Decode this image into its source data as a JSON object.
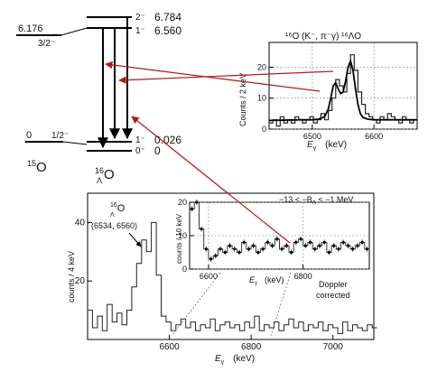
{
  "level_scheme": {
    "o15": {
      "levels": [
        {
          "energy": "6.176",
          "spin": "3/2⁻"
        },
        {
          "energy": "0",
          "spin": "1/2⁻"
        }
      ],
      "label_main": "15",
      "label_sym": "O"
    },
    "hyp16": {
      "levels": [
        {
          "spin": "2⁻",
          "energy": "6.784"
        },
        {
          "spin": "1⁻",
          "energy": "6.560"
        },
        {
          "spin": "1⁻",
          "energy": "0.026"
        },
        {
          "spin": "0⁻",
          "energy": "0"
        }
      ],
      "label_mass": "16",
      "label_lambda": "Λ",
      "label_sym": "O"
    }
  },
  "text": {
    "top_title": "¹⁶O (K⁻, π⁻γ) ¹⁶ΛO",
    "top_ylabel": "Counts / 2 keV",
    "top_xlabel": "E",
    "top_xsub": "γ",
    "top_xunit": "(keV)",
    "bot_ylabel": "counts / 4 keV",
    "bot_xlabel": "E",
    "bot_xsub": "γ",
    "bot_xunit": "(keV)",
    "bot_peak_mass": "16",
    "bot_peak_lambda": "Λ",
    "bot_peak_sym": "O",
    "bot_peak_energies": "(6534, 6560)",
    "inset_range": "−13 < −B",
    "inset_range_sub": "Λ",
    "inset_range_end": " < −1 MeV",
    "inset_ylabel": "counts / 10 keV",
    "inset_xlabel": "E",
    "inset_xsub": "γ",
    "inset_xunit": "(keV)",
    "doppler_line1": "Doppler",
    "doppler_line2": "corrected"
  },
  "chart_data": [
    {
      "type": "line",
      "name": "top-spectrum",
      "xlim": [
        6430,
        6670
      ],
      "ylim": [
        0,
        28
      ],
      "xticks": [
        6500,
        6600
      ],
      "yticks": [
        0,
        10,
        20
      ],
      "x": [
        6430,
        6436,
        6442,
        6448,
        6454,
        6460,
        6466,
        6472,
        6478,
        6484,
        6490,
        6496,
        6502,
        6508,
        6514,
        6520,
        6526,
        6532,
        6538,
        6544,
        6550,
        6556,
        6562,
        6568,
        6574,
        6580,
        6586,
        6592,
        6598,
        6604,
        6610,
        6616,
        6622,
        6628,
        6634,
        6640,
        6646,
        6652,
        6658,
        6664
      ],
      "y": [
        2,
        3,
        1,
        4,
        2,
        3,
        2,
        4,
        3,
        2,
        3,
        4,
        2,
        3,
        5,
        3,
        6,
        10,
        16,
        14,
        12,
        18,
        24,
        19,
        12,
        8,
        5,
        4,
        3,
        2,
        4,
        3,
        5,
        4,
        3,
        2,
        4,
        3,
        2,
        3
      ],
      "fit_x": [
        6430,
        6480,
        6500,
        6510,
        6520,
        6526,
        6530,
        6534,
        6538,
        6542,
        6546,
        6550,
        6554,
        6558,
        6562,
        6566,
        6570,
        6574,
        6578,
        6582,
        6590,
        6600,
        6620,
        6670
      ],
      "fit_y": [
        2.8,
        3,
        3,
        3.2,
        4,
        6.5,
        10,
        14,
        15,
        13,
        11.5,
        12,
        15.5,
        20,
        22,
        19,
        13,
        8,
        5,
        3.8,
        3.2,
        3,
        3,
        3
      ]
    },
    {
      "type": "line",
      "name": "bottom-spectrum",
      "xlim": [
        6400,
        7100
      ],
      "ylim": [
        0,
        50
      ],
      "xticks": [
        6600,
        6800,
        7000
      ],
      "yticks": [
        20,
        40
      ],
      "x": [
        6400,
        6412,
        6424,
        6436,
        6448,
        6460,
        6472,
        6484,
        6496,
        6508,
        6520,
        6532,
        6544,
        6556,
        6568,
        6580,
        6592,
        6604,
        6616,
        6628,
        6640,
        6652,
        6664,
        6676,
        6688,
        6700,
        6712,
        6724,
        6736,
        6748,
        6760,
        6772,
        6784,
        6796,
        6808,
        6820,
        6832,
        6844,
        6856,
        6868,
        6880,
        6892,
        6904,
        6916,
        6928,
        6940,
        6952,
        6964,
        6976,
        6988,
        7000,
        7012,
        7024,
        7036,
        7048,
        7060,
        7072,
        7084,
        7096
      ],
      "y": [
        10,
        4,
        8,
        3,
        12,
        6,
        9,
        5,
        10,
        18,
        26,
        34,
        30,
        40,
        22,
        8,
        6,
        3,
        5,
        7,
        4,
        6,
        3,
        5,
        4,
        7,
        3,
        5,
        6,
        4,
        5,
        3,
        6,
        4,
        8,
        3,
        5,
        4,
        6,
        3,
        5,
        7,
        4,
        6,
        3,
        5,
        4,
        6,
        3,
        5,
        4,
        2,
        6,
        3,
        5,
        4,
        3,
        5,
        4
      ]
    },
    {
      "type": "line",
      "name": "inset-spectrum",
      "xlim": [
        6560,
        6940
      ],
      "ylim": [
        0,
        20
      ],
      "xticks": [
        6600,
        6800
      ],
      "yticks": [
        0,
        10,
        20
      ],
      "x": [
        6560,
        6570,
        6580,
        6590,
        6600,
        6610,
        6620,
        6630,
        6640,
        6650,
        6660,
        6670,
        6680,
        6690,
        6700,
        6710,
        6720,
        6730,
        6740,
        6750,
        6760,
        6770,
        6780,
        6790,
        6800,
        6810,
        6820,
        6830,
        6840,
        6850,
        6860,
        6870,
        6880,
        6890,
        6900,
        6910,
        6920,
        6930
      ],
      "y": [
        18,
        20,
        12,
        6,
        3,
        4,
        6,
        5,
        7,
        6,
        5,
        8,
        6,
        7,
        5,
        6,
        8,
        7,
        9,
        6,
        7,
        5,
        8,
        9,
        7,
        8,
        6,
        7,
        8,
        5,
        7,
        6,
        8,
        7,
        6,
        7,
        8,
        6
      ]
    }
  ]
}
